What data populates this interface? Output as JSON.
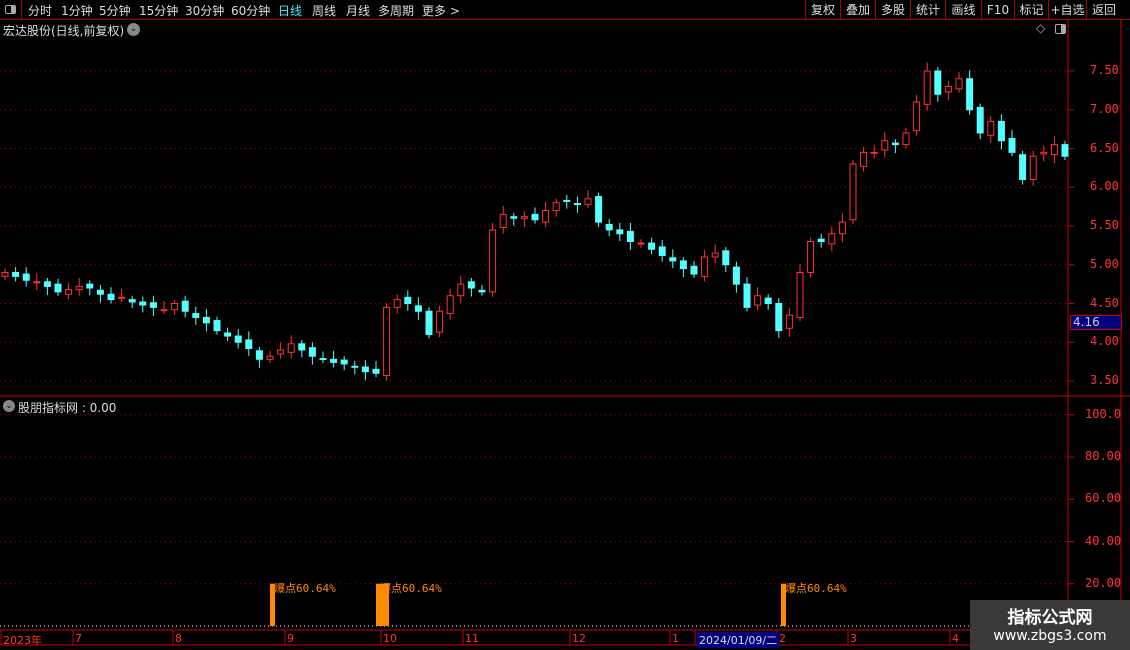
{
  "toolbar": {
    "periods": [
      "分时",
      "1分钟",
      "5分钟",
      "15分钟",
      "30分钟",
      "60分钟",
      "日线",
      "周线",
      "月线",
      "多周期",
      "更多 >"
    ],
    "active_period": "日线",
    "buttons": [
      "复权",
      "叠加",
      "多股",
      "统计",
      "画线",
      "F10",
      "标记",
      "+自选",
      "返回"
    ]
  },
  "main_chart": {
    "title": "宏达股份(日线,前复权)",
    "current_price_tag": "4.16"
  },
  "indicator": {
    "title": "股朋指标网 : 0.00",
    "label_text": "爆点60.64%"
  },
  "watermark": {
    "line1": "指标公式网",
    "line2": "www.zbgs3.com"
  },
  "colors": {
    "up": "#ff3232",
    "down": "#54ffff",
    "axis": "#ff3333",
    "signal": "#ff8c00",
    "highlight": "#000080"
  },
  "chart_data": [
    {
      "type": "candlestick",
      "ylim": [
        3.4,
        7.9
      ],
      "y_ticks": [
        "7.50",
        "7.00",
        "6.50",
        "6.00",
        "5.50",
        "5.00",
        "4.50",
        "4.00",
        "3.50"
      ],
      "close": [
        4.9,
        4.85,
        4.8,
        4.78,
        4.72,
        4.65,
        4.68,
        4.72,
        4.7,
        4.62,
        4.55,
        4.58,
        4.52,
        4.48,
        4.45,
        4.42,
        4.5,
        4.4,
        4.32,
        4.25,
        4.15,
        4.08,
        4.0,
        3.92,
        3.78,
        3.82,
        3.9,
        3.98,
        3.9,
        3.82,
        3.78,
        3.74,
        3.72,
        3.68,
        3.62,
        3.6,
        4.45,
        4.55,
        4.5,
        4.4,
        4.1,
        4.4,
        4.6,
        4.75,
        4.7,
        4.65,
        5.45,
        5.65,
        5.6,
        5.62,
        5.58,
        5.7,
        5.8,
        5.82,
        5.78,
        5.85,
        5.55,
        5.45,
        5.4,
        5.3,
        5.28,
        5.2,
        5.12,
        5.05,
        4.95,
        4.88,
        5.1,
        5.15,
        5.0,
        4.75,
        4.45,
        4.6,
        4.5,
        4.15,
        4.35,
        4.9,
        5.3,
        5.3,
        5.4,
        5.55,
        6.3,
        6.45,
        6.45,
        6.6,
        6.55,
        6.7,
        7.1,
        7.5,
        7.2,
        7.3,
        7.4,
        7.0,
        6.7,
        6.85,
        6.6,
        6.45,
        6.1,
        6.4,
        6.45,
        6.55,
        6.4
      ],
      "x_ticks": [
        "2023年",
        "7",
        "8",
        "9",
        "10",
        "11",
        "12",
        "1",
        "2024/01/09/二",
        "2",
        "3",
        "4"
      ]
    },
    {
      "type": "bar",
      "ylim": [
        0,
        110
      ],
      "y_ticks": [
        "100.0",
        "80.00",
        "60.00",
        "40.00",
        "20.00"
      ],
      "signals": [
        {
          "value": 20,
          "label": "爆点60.64%"
        },
        {
          "value": 20,
          "label": "爆点60.64%"
        },
        {
          "value": 20,
          "label": "爆点60.64%"
        }
      ]
    }
  ]
}
